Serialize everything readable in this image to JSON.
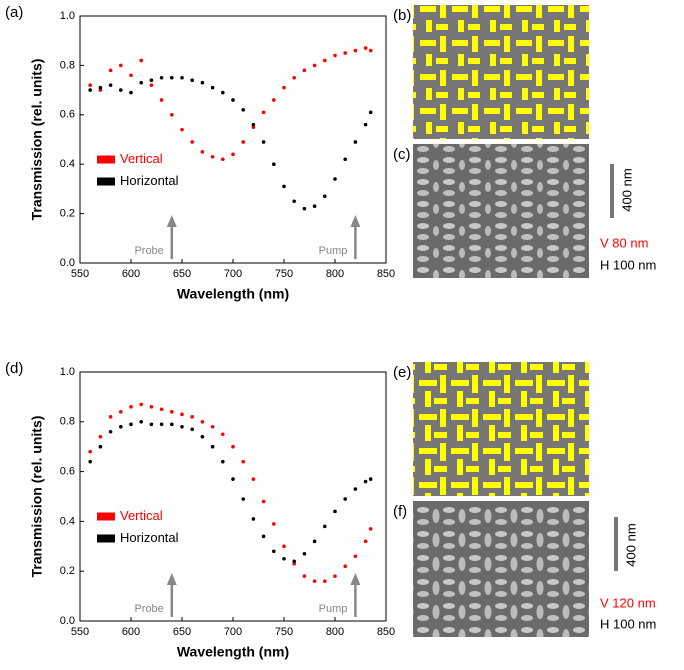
{
  "chart_data": [
    {
      "type": "scatter",
      "panel_label": "(a)",
      "x_label": "Wavelength (nm)",
      "y_label": "Transmission (rel. units)",
      "x": [
        560,
        570,
        580,
        590,
        600,
        610,
        620,
        630,
        640,
        650,
        660,
        670,
        680,
        690,
        700,
        710,
        720,
        730,
        740,
        750,
        760,
        770,
        780,
        790,
        800,
        810,
        820,
        830,
        835
      ],
      "series": [
        {
          "name": "Vertical",
          "color": "#ff0000",
          "values": [
            0.72,
            0.7,
            0.78,
            0.8,
            0.76,
            0.82,
            0.72,
            0.66,
            0.6,
            0.54,
            0.49,
            0.45,
            0.43,
            0.42,
            0.44,
            0.49,
            0.55,
            0.61,
            0.66,
            0.71,
            0.75,
            0.78,
            0.8,
            0.82,
            0.84,
            0.85,
            0.86,
            0.87,
            0.86
          ]
        },
        {
          "name": "Horizontal",
          "color": "#000000",
          "values": [
            0.7,
            0.71,
            0.72,
            0.7,
            0.69,
            0.73,
            0.74,
            0.75,
            0.75,
            0.75,
            0.74,
            0.73,
            0.71,
            0.69,
            0.66,
            0.62,
            0.56,
            0.49,
            0.4,
            0.31,
            0.25,
            0.22,
            0.23,
            0.27,
            0.34,
            0.42,
            0.49,
            0.56,
            0.61
          ]
        }
      ],
      "xlim": [
        550,
        850
      ],
      "xticks": [
        550,
        600,
        650,
        700,
        750,
        800,
        850
      ],
      "ylim": [
        0,
        1
      ],
      "yticks": [
        {
          "value": 0,
          "label": "0.0"
        },
        0.2,
        0.4,
        0.6,
        0.8,
        {
          "value": 1,
          "label": "1.0"
        }
      ],
      "legend": "center left",
      "annotations": [
        {
          "text": "Probe",
          "x": 640
        },
        {
          "text": "Pump",
          "x": 820
        }
      ]
    },
    {
      "type": "scatter",
      "panel_label": "(d)",
      "x_label": "Wavelength (nm)",
      "y_label": "Transmission (rel. units)",
      "x": [
        560,
        570,
        580,
        590,
        600,
        610,
        620,
        630,
        640,
        650,
        660,
        670,
        680,
        690,
        700,
        710,
        720,
        730,
        740,
        750,
        760,
        770,
        780,
        790,
        800,
        810,
        820,
        830,
        835
      ],
      "series": [
        {
          "name": "Vertical",
          "color": "#ff0000",
          "values": [
            0.68,
            0.74,
            0.82,
            0.84,
            0.86,
            0.87,
            0.86,
            0.85,
            0.84,
            0.83,
            0.82,
            0.8,
            0.78,
            0.75,
            0.7,
            0.64,
            0.57,
            0.48,
            0.39,
            0.3,
            0.23,
            0.18,
            0.16,
            0.16,
            0.18,
            0.22,
            0.26,
            0.32,
            0.37
          ]
        },
        {
          "name": "Horizontal",
          "color": "#000000",
          "values": [
            0.64,
            0.7,
            0.76,
            0.78,
            0.79,
            0.8,
            0.79,
            0.79,
            0.79,
            0.78,
            0.77,
            0.74,
            0.7,
            0.64,
            0.57,
            0.49,
            0.41,
            0.34,
            0.28,
            0.25,
            0.24,
            0.27,
            0.32,
            0.38,
            0.44,
            0.49,
            0.53,
            0.56,
            0.57
          ]
        }
      ],
      "xlim": [
        550,
        850
      ],
      "xticks": [
        550,
        600,
        650,
        700,
        750,
        800,
        850
      ],
      "ylim": [
        0,
        1
      ],
      "yticks": [
        {
          "value": 0,
          "label": "0.0"
        },
        0.2,
        0.4,
        0.6,
        0.8,
        {
          "value": 1,
          "label": "1.0"
        }
      ],
      "legend": "center left",
      "annotations": [
        {
          "text": "Probe",
          "x": 640
        },
        {
          "text": "Pump",
          "x": 820
        }
      ]
    }
  ],
  "panels": [
    {
      "label": "(b)"
    },
    {
      "label": "(c)",
      "scale_bar": "400 nm",
      "v_size": "V 80 nm",
      "h_size": "H 100 nm"
    },
    {
      "label": "(e)"
    },
    {
      "label": "(f)",
      "scale_bar": "400 nm",
      "v_size": "V 120 nm",
      "h_size": "H 100 nm"
    }
  ]
}
